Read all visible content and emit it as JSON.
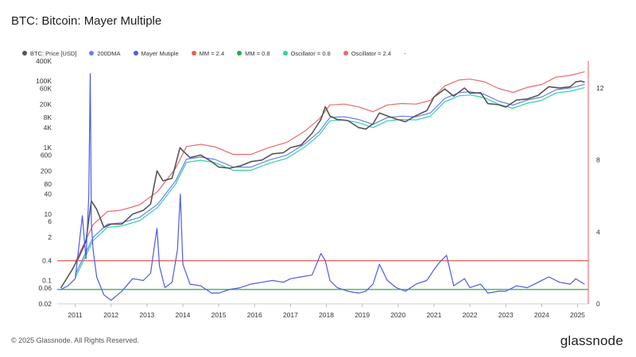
{
  "title": "BTC: Bitcoin: Mayer Multiple",
  "footer": "© 2025 Glassnode. All Rights Reserved.",
  "brand": "glassnode",
  "legend": [
    {
      "label": "BTC: Price [USD]",
      "color": "#555555"
    },
    {
      "label": "200DMA",
      "color": "#6d7cf0"
    },
    {
      "label": "Mayer Mutiple",
      "color": "#4b5be6"
    },
    {
      "label": "MM = 2.4",
      "color": "#e85c5c"
    },
    {
      "label": "MM = 0.8",
      "color": "#2aa84a"
    },
    {
      "label": "Oscillator = 0.8",
      "color": "#2ed3a0"
    },
    {
      "label": "Oscillator = 2.4",
      "color": "#e86a6a"
    }
  ],
  "legend_extra": "-",
  "chart_data": {
    "type": "line",
    "left_axis": {
      "scale": "log",
      "ticks": [
        400000,
        100000,
        60000,
        20000,
        8000,
        4000,
        1000,
        600,
        200,
        80,
        40,
        10,
        6,
        2,
        0.4,
        0.1,
        0.06,
        0.02
      ],
      "tick_labels": [
        "400K",
        "100K",
        "60K",
        "20K",
        "8K",
        "4K",
        "1K",
        "600",
        "200",
        "80",
        "40",
        "10",
        "6",
        "2",
        "0.4",
        "0.1",
        "0.06",
        "0.02"
      ],
      "range": [
        0.02,
        400000
      ]
    },
    "right_axis": {
      "scale": "linear",
      "ticks": [
        0,
        4,
        8,
        12
      ],
      "tick_labels": [
        "0",
        "4",
        "8",
        "12"
      ],
      "range": [
        0,
        13.5
      ]
    },
    "x_axis": {
      "range": [
        2010.5,
        2025.3
      ],
      "ticks": [
        2011,
        2012,
        2013,
        2014,
        2015,
        2016,
        2017,
        2018,
        2019,
        2020,
        2021,
        2022,
        2023,
        2024,
        2025
      ],
      "tick_labels": [
        "2011",
        "2012",
        "2013",
        "2014",
        "2015",
        "2016",
        "2017",
        "2018",
        "2019",
        "2020",
        "2021",
        "2022",
        "2023",
        "2024",
        "2025"
      ]
    },
    "reference_lines": [
      {
        "name": "MM = 2.4",
        "axis": "right",
        "value": 2.4,
        "color": "#e85c5c"
      },
      {
        "name": "MM = 0.8",
        "axis": "right",
        "value": 0.8,
        "color": "#2aa84a"
      }
    ],
    "series": [
      {
        "name": "BTC: Price [USD]",
        "axis": "left",
        "color": "#555555",
        "x": [
          2010.6,
          2010.9,
          2011.1,
          2011.3,
          2011.45,
          2011.6,
          2011.8,
          2012.0,
          2012.3,
          2012.6,
          2012.9,
          2013.1,
          2013.28,
          2013.45,
          2013.7,
          2013.92,
          2014.0,
          2014.2,
          2014.5,
          2014.8,
          2015.0,
          2015.3,
          2015.6,
          2015.9,
          2016.2,
          2016.5,
          2016.8,
          2017.0,
          2017.3,
          2017.6,
          2017.85,
          2017.97,
          2018.1,
          2018.3,
          2018.6,
          2018.9,
          2019.1,
          2019.3,
          2019.48,
          2019.7,
          2019.95,
          2020.2,
          2020.5,
          2020.8,
          2021.0,
          2021.3,
          2021.55,
          2021.85,
          2022.0,
          2022.3,
          2022.5,
          2022.8,
          2023.0,
          2023.3,
          2023.6,
          2023.9,
          2024.2,
          2024.5,
          2024.8,
          2024.95,
          2025.1,
          2025.2
        ],
        "y": [
          0.06,
          0.2,
          0.5,
          1.5,
          25,
          14,
          4,
          5,
          5,
          10,
          13,
          20,
          200,
          100,
          120,
          1000,
          800,
          500,
          600,
          380,
          260,
          240,
          280,
          380,
          420,
          650,
          700,
          1000,
          1200,
          2700,
          7000,
          17000,
          9000,
          7000,
          6500,
          4000,
          3600,
          5200,
          11000,
          9000,
          7200,
          6000,
          9200,
          13000,
          33000,
          58000,
          35000,
          62000,
          43000,
          45000,
          21000,
          19500,
          16500,
          27000,
          29000,
          37000,
          68000,
          62000,
          68000,
          95000,
          100000,
          92000
        ]
      },
      {
        "name": "200DMA",
        "axis": "left",
        "color": "#6d7cf0",
        "x": [
          2011.0,
          2011.5,
          2011.9,
          2012.3,
          2012.8,
          2013.3,
          2013.8,
          2014.1,
          2014.5,
          2014.9,
          2015.4,
          2015.9,
          2016.4,
          2016.9,
          2017.4,
          2017.8,
          2018.1,
          2018.5,
          2018.9,
          2019.3,
          2019.7,
          2020.1,
          2020.5,
          2020.9,
          2021.3,
          2021.7,
          2022.0,
          2022.4,
          2022.8,
          2023.2,
          2023.6,
          2024.0,
          2024.4,
          2024.8,
          2025.2
        ],
        "y": [
          0.15,
          2,
          5,
          5.5,
          8,
          20,
          100,
          450,
          520,
          440,
          260,
          260,
          420,
          600,
          1300,
          3000,
          8000,
          8500,
          7000,
          5000,
          8000,
          8800,
          8500,
          11000,
          30000,
          45000,
          48000,
          40000,
          25000,
          19000,
          27000,
          33000,
          55000,
          62000,
          80000
        ]
      },
      {
        "name": "Mayer Mutiple",
        "axis": "right",
        "color": "#4b5be6",
        "x": [
          2010.6,
          2010.8,
          2011.0,
          2011.2,
          2011.3,
          2011.38,
          2011.42,
          2011.45,
          2011.5,
          2011.6,
          2011.8,
          2012.0,
          2012.3,
          2012.6,
          2012.9,
          2013.1,
          2013.25,
          2013.28,
          2013.35,
          2013.5,
          2013.7,
          2013.85,
          2013.93,
          2014.0,
          2014.2,
          2014.5,
          2014.8,
          2015.0,
          2015.3,
          2015.6,
          2015.9,
          2016.2,
          2016.5,
          2016.8,
          2017.0,
          2017.3,
          2017.6,
          2017.85,
          2017.97,
          2018.1,
          2018.3,
          2018.6,
          2018.9,
          2019.1,
          2019.3,
          2019.48,
          2019.7,
          2019.95,
          2020.2,
          2020.5,
          2020.8,
          2021.0,
          2021.15,
          2021.35,
          2021.55,
          2021.85,
          2022.0,
          2022.3,
          2022.5,
          2022.8,
          2023.0,
          2023.3,
          2023.6,
          2023.9,
          2024.2,
          2024.5,
          2024.8,
          2024.95,
          2025.1,
          2025.2
        ],
        "y": [
          0.8,
          1.0,
          1.4,
          4.9,
          2.5,
          6.0,
          12.8,
          4.5,
          3.0,
          1.5,
          0.5,
          0.2,
          0.7,
          1.4,
          1.3,
          1.7,
          3.8,
          4.2,
          2.1,
          0.9,
          1.2,
          3.0,
          6.1,
          2.2,
          1.1,
          1.0,
          0.6,
          0.6,
          0.8,
          0.9,
          1.1,
          1.2,
          1.3,
          1.2,
          1.4,
          1.5,
          1.6,
          2.8,
          2.4,
          1.3,
          0.9,
          0.7,
          0.6,
          0.7,
          1.1,
          2.2,
          1.3,
          0.9,
          0.7,
          1.1,
          1.3,
          1.9,
          2.3,
          2.7,
          1.0,
          1.4,
          0.9,
          1.1,
          0.6,
          0.7,
          0.7,
          1.0,
          0.9,
          1.2,
          1.5,
          1.2,
          1.1,
          1.4,
          1.2,
          1.1
        ]
      },
      {
        "name": "Oscillator = 0.8",
        "axis": "left",
        "color": "#2ed3a0",
        "x": [
          2011.0,
          2011.5,
          2011.9,
          2012.3,
          2012.8,
          2013.3,
          2013.8,
          2014.1,
          2014.5,
          2014.9,
          2015.4,
          2015.9,
          2016.4,
          2016.9,
          2017.4,
          2017.8,
          2018.1,
          2018.5,
          2018.9,
          2019.3,
          2019.7,
          2020.1,
          2020.5,
          2020.9,
          2021.3,
          2021.7,
          2022.0,
          2022.4,
          2022.8,
          2023.2,
          2023.6,
          2024.0,
          2024.4,
          2024.8,
          2025.2
        ],
        "y": [
          0.12,
          1.6,
          4,
          4.4,
          6.4,
          16,
          80,
          360,
          416,
          352,
          208,
          208,
          336,
          480,
          1040,
          2400,
          6400,
          6800,
          5600,
          4000,
          6400,
          7040,
          6800,
          8800,
          24000,
          36000,
          38400,
          32000,
          20000,
          15200,
          21600,
          26400,
          44000,
          49600,
          64000
        ]
      },
      {
        "name": "Oscillator = 2.4",
        "axis": "left",
        "color": "#e86a6a",
        "x": [
          2011.0,
          2011.5,
          2011.9,
          2012.3,
          2012.8,
          2013.3,
          2013.8,
          2014.1,
          2014.5,
          2014.9,
          2015.4,
          2015.9,
          2016.4,
          2016.9,
          2017.4,
          2017.8,
          2018.1,
          2018.5,
          2018.9,
          2019.3,
          2019.7,
          2020.1,
          2020.5,
          2020.9,
          2021.3,
          2021.7,
          2022.0,
          2022.4,
          2022.8,
          2023.2,
          2023.6,
          2024.0,
          2024.4,
          2024.8,
          2025.2
        ],
        "y": [
          0.36,
          4.8,
          12,
          13.2,
          19.2,
          48,
          240,
          1080,
          1248,
          1056,
          624,
          624,
          1008,
          1440,
          3120,
          7200,
          19200,
          20400,
          16800,
          12000,
          19200,
          21120,
          20400,
          26400,
          72000,
          108000,
          115200,
          96000,
          60000,
          45600,
          64800,
          79200,
          132000,
          148800,
          192000
        ]
      }
    ]
  }
}
